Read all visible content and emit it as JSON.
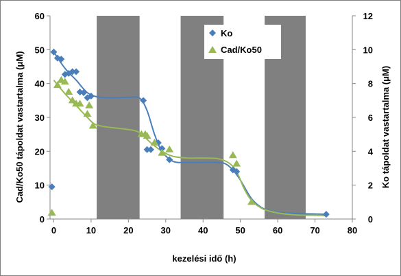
{
  "chart_data": {
    "type": "scatter",
    "title": "",
    "xlabel": "kezelési idő (h)",
    "ylabel_left": "Cad/Ko50 tápoldat vastartalma (μM)",
    "ylabel_right": "Ko tápoldat vastartalma (μM)",
    "xlim": [
      -1,
      80
    ],
    "ylim_left": [
      0,
      60
    ],
    "ylim_right": [
      0,
      12
    ],
    "x_ticks": [
      "0",
      "10",
      "20",
      "30",
      "40",
      "50",
      "60",
      "70",
      "80"
    ],
    "y_left_ticks": [
      "0",
      "10",
      "20",
      "30",
      "40",
      "50",
      "60"
    ],
    "y_right_ticks": [
      "0",
      "2",
      "4",
      "6",
      "8",
      "10",
      "12"
    ],
    "grid": false,
    "legend_position": "top-center",
    "dark_periods": [
      [
        11.5,
        23
      ],
      [
        34,
        45.5
      ],
      [
        56.5,
        67.5
      ]
    ],
    "colors": {
      "ko": "#4a7ebb",
      "cad": "#98b954",
      "dark": "#808080",
      "axis": "#868686"
    },
    "series": [
      {
        "name": "Ko",
        "axis": "left",
        "marker": "diamond",
        "points": [
          [
            -0.5,
            9.5
          ],
          [
            0,
            49.3
          ],
          [
            1,
            47.5
          ],
          [
            2,
            47.2
          ],
          [
            3,
            42.7
          ],
          [
            4,
            43
          ],
          [
            5,
            43.5
          ],
          [
            6,
            43.5
          ],
          [
            7,
            37.5
          ],
          [
            8,
            37.3
          ],
          [
            9,
            35.8
          ],
          [
            10,
            36.3
          ],
          [
            24,
            35
          ],
          [
            25,
            20.5
          ],
          [
            26,
            20.5
          ],
          [
            28,
            22.5
          ],
          [
            29,
            20.8
          ],
          [
            31,
            17.5
          ],
          [
            48,
            14.5
          ],
          [
            49,
            14
          ],
          [
            73,
            1.4
          ]
        ],
        "trend": [
          [
            0,
            49.3
          ],
          [
            3,
            44.5
          ],
          [
            6,
            41
          ],
          [
            9,
            37.3
          ],
          [
            12,
            36
          ],
          [
            16,
            35.8
          ],
          [
            20,
            35.9
          ],
          [
            23,
            35.7
          ],
          [
            25,
            32
          ],
          [
            27,
            25
          ],
          [
            29,
            20
          ],
          [
            32,
            17
          ],
          [
            36,
            16.7
          ],
          [
            40,
            16.7
          ],
          [
            44,
            16.7
          ],
          [
            46,
            16.3
          ],
          [
            48,
            14.5
          ],
          [
            50,
            11.5
          ],
          [
            53,
            6
          ],
          [
            56,
            3.2
          ],
          [
            60,
            2
          ],
          [
            65,
            1.6
          ],
          [
            70,
            1.5
          ],
          [
            73,
            1.4
          ]
        ]
      },
      {
        "name": "Cad/Ko50",
        "axis": "left",
        "marker": "triangle",
        "points": [
          [
            -0.5,
            1.8
          ],
          [
            1,
            39.5
          ],
          [
            2,
            41
          ],
          [
            3,
            40.5
          ],
          [
            4,
            37.5
          ],
          [
            5,
            35
          ],
          [
            6,
            34
          ],
          [
            7,
            34
          ],
          [
            9,
            31
          ],
          [
            9.5,
            33.5
          ],
          [
            10.5,
            27.5
          ],
          [
            23.5,
            25
          ],
          [
            24.5,
            25
          ],
          [
            25,
            24.5
          ],
          [
            27,
            22.5
          ],
          [
            29,
            19.5
          ],
          [
            31,
            20.5
          ],
          [
            48,
            18.8
          ],
          [
            49,
            16.3
          ],
          [
            53,
            5
          ]
        ],
        "trend": [
          [
            0,
            41
          ],
          [
            3,
            37
          ],
          [
            6,
            33.5
          ],
          [
            9,
            30
          ],
          [
            11,
            28
          ],
          [
            14,
            27.2
          ],
          [
            18,
            26.7
          ],
          [
            22,
            26
          ],
          [
            24,
            24.6
          ],
          [
            26,
            22.5
          ],
          [
            29,
            20
          ],
          [
            32,
            18.5
          ],
          [
            36,
            18
          ],
          [
            40,
            18
          ],
          [
            44,
            17.8
          ],
          [
            47,
            16.5
          ],
          [
            49,
            14
          ],
          [
            51,
            9
          ],
          [
            53,
            5.5
          ],
          [
            56,
            3
          ],
          [
            60,
            1.8
          ],
          [
            65,
            1.2
          ],
          [
            70,
            1.1
          ],
          [
            73,
            1
          ]
        ]
      }
    ]
  }
}
